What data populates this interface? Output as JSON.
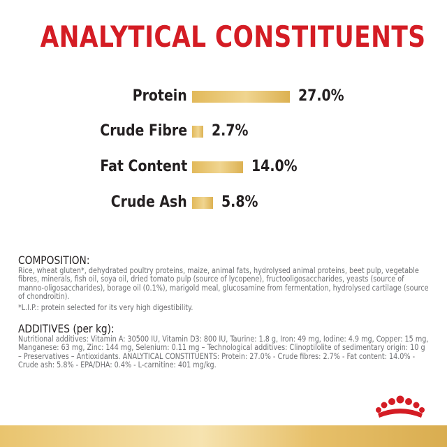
{
  "title": "ANALYTICAL CONSTITUENTS",
  "nutrients": [
    {
      "label": "Protein",
      "value_text": "27.0%",
      "value": 27.0
    },
    {
      "label": "Crude Fibre",
      "value_text": "2.7%",
      "value": 2.7
    },
    {
      "label": "Fat Content",
      "value_text": "14.0%",
      "value": 14.0
    },
    {
      "label": "Crude Ash",
      "value_text": "5.8%",
      "value": 5.8
    }
  ],
  "composition": {
    "heading": "COMPOSITION:",
    "text": "Rice, wheat gluten*, dehydrated poultry proteins, maize, animal fats, hydrolysed animal proteins, beet pulp, vegetable fibres, minerals, fish oil, soya oil, dried tomato pulp (source of lycopene), fructooligosaccharides, yeasts (source of manno-oligosaccharides), borage oil (0.1%), marigold meal, glucosamine from fermentation, hydrolysed cartilage (source of chondroitin).",
    "footnote": "*L.I.P.: protein selected for its very high digestibility."
  },
  "additives": {
    "heading": "ADDITIVES (per kg):",
    "text": "Nutritional additives: Vitamin A: 30500 IU, Vitamin D3: 800 IU, Taurine: 1.8 g, Iron: 49 mg, Iodine: 4.9 mg, Copper: 15 mg, Manganese: 63 mg, Zinc: 144 mg, Selenium: 0.11 mg – Technological additives: Clinoptilolite of sedimentary origin: 10 g – Preservatives – Antioxidants. ANALYTICAL CONSTITUENTS: Protein: 27.0% - Crude fibres:  2.7% - Fat content: 14.0% - Crude ash: 5.8% - EPA/DHA: 0.4% - L-carnitine: 401 mg/kg."
  },
  "colors": {
    "title_red": "#d41c24",
    "bar_gold": "#e2b95a",
    "text_dark": "#231f20",
    "text_grey": "#6d6e71"
  },
  "icons": {
    "logo": "royal-canin-crown-icon"
  }
}
